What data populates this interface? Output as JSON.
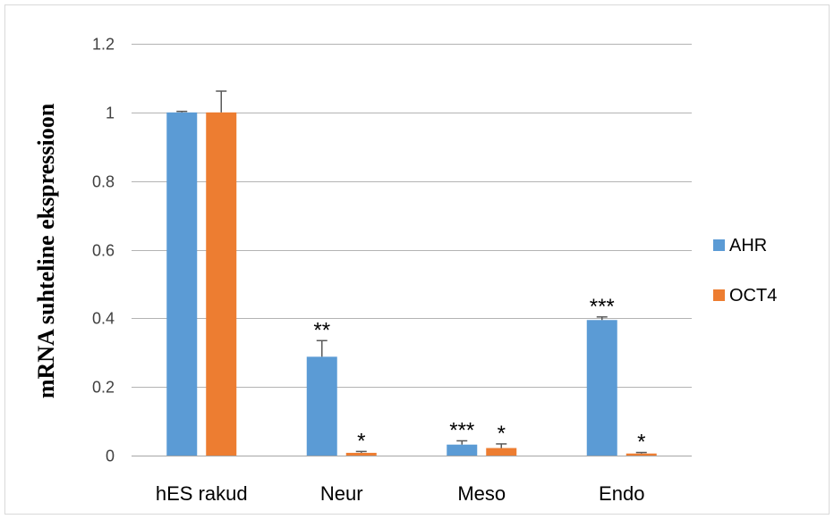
{
  "chart_data": {
    "type": "bar",
    "title": "",
    "xlabel": "",
    "ylabel": "mRNA suhteline ekspressioon",
    "ylim": [
      0,
      1.2
    ],
    "yticks": [
      0,
      0.2,
      0.4,
      0.6,
      0.8,
      1,
      1.2
    ],
    "ytick_labels": [
      "0",
      "0.2",
      "0.4",
      "0.6",
      "0.8",
      "1",
      "1.2"
    ],
    "grid": true,
    "legend_position": "right",
    "categories": [
      "hES rakud",
      "Neur",
      "Meso",
      "Endo"
    ],
    "series": [
      {
        "name": "AHR",
        "color": "#5b9bd5",
        "values": [
          1.0,
          0.288,
          0.032,
          0.395
        ],
        "errors": [
          0.003,
          0.047,
          0.011,
          0.009
        ],
        "significance": [
          "",
          "**",
          "***",
          "***"
        ]
      },
      {
        "name": "OCT4",
        "color": "#ed7d31",
        "values": [
          1.0,
          0.008,
          0.022,
          0.006
        ],
        "errors": [
          0.062,
          0.004,
          0.012,
          0.003
        ],
        "significance": [
          "",
          "*",
          "*",
          "*"
        ]
      }
    ]
  }
}
